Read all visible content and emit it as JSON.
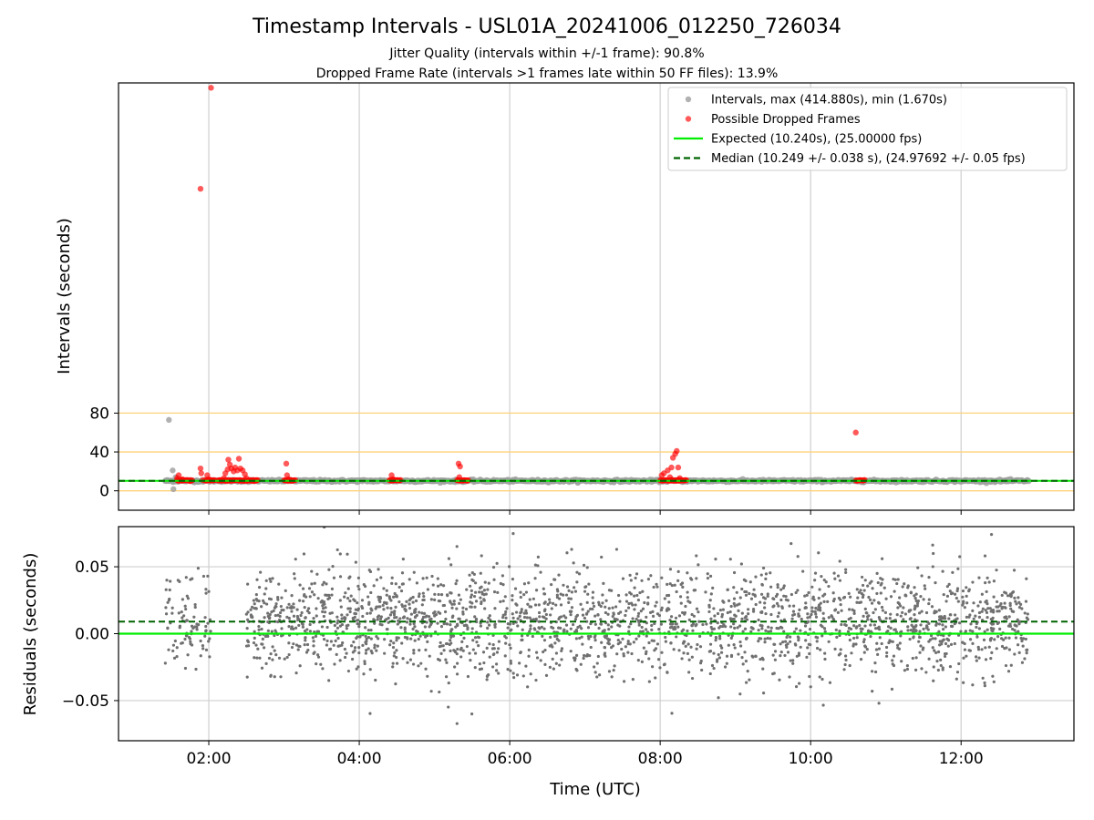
{
  "figure": {
    "title": "Timestamp Intervals - USL01A_20241006_012250_726034",
    "subtitle_1": "Jitter Quality (intervals within +/-1 frame): 90.8%",
    "subtitle_2": "Dropped Frame Rate (intervals >1 frames late within 50 FF files): 13.9%"
  },
  "colors": {
    "intervals": "#9e9e9e",
    "dropped": "#ff0000",
    "expected": "#00ee00",
    "median": "#006400",
    "reference_lines": "#ffd27a",
    "grid": "#cfcfcf",
    "residuals": "#707070"
  },
  "chart_data": [
    {
      "type": "scatter",
      "panel": "top",
      "ylabel": "Intervals (seconds)",
      "xlim_hours": [
        0.8,
        13.5
      ],
      "ylim": [
        -20,
        420
      ],
      "yticks": [
        0,
        40,
        80
      ],
      "reference_lines_y": [
        0,
        40,
        80
      ],
      "grid": "vertical",
      "legend_position": "top-right",
      "legend": {
        "intervals": "Intervals, max (414.880s), min (1.670s)",
        "dropped": "Possible Dropped Frames",
        "expected": "Expected (10.240s), (25.00000 fps)",
        "median": "Median (10.249 +/- 0.038 s), (24.97692 +/- 0.05 fps)"
      },
      "expected_interval": 10.24,
      "median_interval": 10.249,
      "interval_band_hours": [
        1.42,
        12.9
      ],
      "interval_outliers": [
        {
          "t": 1.47,
          "y": 73
        },
        {
          "t": 1.52,
          "y": 21
        },
        {
          "t": 1.53,
          "y": 1.67
        },
        {
          "t": 1.56,
          "y": 14
        }
      ],
      "dropped_points": [
        {
          "t": 2.03,
          "y": 415
        },
        {
          "t": 1.89,
          "y": 311
        },
        {
          "t": 1.58,
          "y": 13
        },
        {
          "t": 1.6,
          "y": 16
        },
        {
          "t": 1.62,
          "y": 11
        },
        {
          "t": 1.65,
          "y": 12
        },
        {
          "t": 1.7,
          "y": 11
        },
        {
          "t": 1.75,
          "y": 10
        },
        {
          "t": 1.89,
          "y": 23
        },
        {
          "t": 1.9,
          "y": 18
        },
        {
          "t": 1.92,
          "y": 11
        },
        {
          "t": 1.98,
          "y": 16
        },
        {
          "t": 2.0,
          "y": 12
        },
        {
          "t": 2.03,
          "y": 11
        },
        {
          "t": 2.15,
          "y": 11
        },
        {
          "t": 2.2,
          "y": 13
        },
        {
          "t": 2.22,
          "y": 18
        },
        {
          "t": 2.25,
          "y": 22
        },
        {
          "t": 2.26,
          "y": 32
        },
        {
          "t": 2.28,
          "y": 27
        },
        {
          "t": 2.3,
          "y": 23
        },
        {
          "t": 2.33,
          "y": 20
        },
        {
          "t": 2.35,
          "y": 24
        },
        {
          "t": 2.38,
          "y": 21
        },
        {
          "t": 2.4,
          "y": 33
        },
        {
          "t": 2.42,
          "y": 23
        },
        {
          "t": 2.45,
          "y": 21
        },
        {
          "t": 2.48,
          "y": 17
        },
        {
          "t": 2.5,
          "y": 13
        },
        {
          "t": 2.55,
          "y": 11
        },
        {
          "t": 2.6,
          "y": 10
        },
        {
          "t": 3.03,
          "y": 28
        },
        {
          "t": 3.04,
          "y": 16
        },
        {
          "t": 3.06,
          "y": 12
        },
        {
          "t": 3.1,
          "y": 11
        },
        {
          "t": 4.43,
          "y": 16
        },
        {
          "t": 4.45,
          "y": 12
        },
        {
          "t": 4.5,
          "y": 11
        },
        {
          "t": 5.32,
          "y": 28
        },
        {
          "t": 5.34,
          "y": 25
        },
        {
          "t": 5.33,
          "y": 14
        },
        {
          "t": 8.02,
          "y": 16
        },
        {
          "t": 8.05,
          "y": 18
        },
        {
          "t": 8.1,
          "y": 21
        },
        {
          "t": 8.13,
          "y": 14
        },
        {
          "t": 8.15,
          "y": 24
        },
        {
          "t": 8.17,
          "y": 34
        },
        {
          "t": 8.2,
          "y": 38
        },
        {
          "t": 8.22,
          "y": 41
        },
        {
          "t": 8.24,
          "y": 24
        },
        {
          "t": 8.26,
          "y": 13
        },
        {
          "t": 10.6,
          "y": 60
        }
      ],
      "dropped_bands_hours": [
        [
          1.58,
          1.78
        ],
        [
          1.95,
          2.08
        ],
        [
          2.12,
          2.65
        ],
        [
          3.0,
          3.15
        ],
        [
          4.4,
          4.55
        ],
        [
          5.3,
          5.45
        ],
        [
          8.0,
          8.35
        ],
        [
          10.6,
          10.72
        ]
      ]
    },
    {
      "type": "scatter",
      "panel": "bottom",
      "xlabel": "Time (UTC)",
      "ylabel": "Residuals (seconds)",
      "xlim_hours": [
        0.8,
        13.5
      ],
      "ylim": [
        -0.08,
        0.08
      ],
      "yticks": [
        "0.05",
        "0.00",
        "−0.05"
      ],
      "ytick_values": [
        0.05,
        0.0,
        -0.05
      ],
      "xticks": [
        "02:00",
        "04:00",
        "06:00",
        "08:00",
        "10:00",
        "12:00"
      ],
      "xtick_hours": [
        2,
        4,
        6,
        8,
        10,
        12
      ],
      "grid": true,
      "expected_residual": 0.0,
      "median_residual": 0.009,
      "data_range_hours": [
        1.42,
        12.9
      ],
      "gap_hours": [
        2.03,
        2.5
      ],
      "sparse_hours": [
        1.42,
        2.03
      ],
      "residual_center": 0.008,
      "residual_spread": 0.02
    }
  ]
}
